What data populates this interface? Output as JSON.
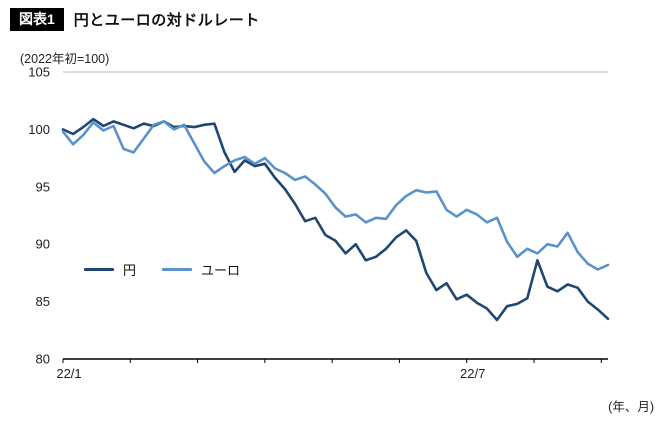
{
  "header": {
    "badge": "図表1",
    "title": "円とユーロの対ドルレート"
  },
  "chart_data": {
    "type": "line",
    "title": "円とユーロの対ドルレート",
    "subtitle": "(2022年初=100)",
    "x_unit_label": "(年、月)",
    "x_axis_note": "months since 2022/1",
    "xlim": [
      0,
      8.1
    ],
    "ylim": [
      80,
      105
    ],
    "yticks": [
      80,
      85,
      90,
      95,
      100,
      105
    ],
    "xticks": [
      {
        "pos": 0,
        "label": "22/1"
      },
      {
        "pos": 6,
        "label": "22/7"
      }
    ],
    "minor_xticks": [
      0,
      1,
      2,
      3,
      4,
      5,
      6,
      7,
      8
    ],
    "grid": false,
    "legend_position": "inside-left",
    "axis_color": "#000000",
    "topline_color": "#bbbbbb",
    "x": [
      0,
      0.15,
      0.3,
      0.45,
      0.6,
      0.75,
      0.9,
      1.05,
      1.2,
      1.35,
      1.5,
      1.65,
      1.8,
      1.95,
      2.1,
      2.25,
      2.4,
      2.55,
      2.7,
      2.85,
      3.0,
      3.15,
      3.3,
      3.45,
      3.6,
      3.75,
      3.9,
      4.05,
      4.2,
      4.35,
      4.5,
      4.65,
      4.8,
      4.95,
      5.1,
      5.25,
      5.4,
      5.55,
      5.7,
      5.85,
      6.0,
      6.15,
      6.3,
      6.45,
      6.6,
      6.75,
      6.9,
      7.05,
      7.2,
      7.35,
      7.5,
      7.65,
      7.8,
      7.95,
      8.1
    ],
    "series": [
      {
        "name": "円",
        "color": "#1e4872",
        "values": [
          100.0,
          99.6,
          100.2,
          100.9,
          100.3,
          100.7,
          100.4,
          100.1,
          100.5,
          100.3,
          100.7,
          100.2,
          100.3,
          100.2,
          100.4,
          100.5,
          98.0,
          96.3,
          97.3,
          96.8,
          97.0,
          95.8,
          94.8,
          93.5,
          92.0,
          92.3,
          90.8,
          90.3,
          89.2,
          90.0,
          88.6,
          88.9,
          89.6,
          90.6,
          91.2,
          90.3,
          87.5,
          86.0,
          86.6,
          85.2,
          85.6,
          84.9,
          84.4,
          83.4,
          84.6,
          84.8,
          85.3,
          88.6,
          86.3,
          85.9,
          86.5,
          86.2,
          85.0,
          84.3,
          83.5
        ]
      },
      {
        "name": "ユーロ",
        "color": "#5b92cc",
        "values": [
          99.8,
          98.7,
          99.5,
          100.6,
          99.9,
          100.3,
          98.3,
          98.0,
          99.2,
          100.4,
          100.7,
          100.0,
          100.4,
          98.8,
          97.2,
          96.2,
          96.8,
          97.3,
          97.6,
          97.0,
          97.5,
          96.6,
          96.2,
          95.6,
          95.9,
          95.2,
          94.4,
          93.2,
          92.4,
          92.6,
          91.9,
          92.3,
          92.2,
          93.4,
          94.2,
          94.7,
          94.5,
          94.6,
          93.0,
          92.4,
          93.0,
          92.6,
          91.9,
          92.3,
          90.2,
          88.9,
          89.6,
          89.2,
          90.0,
          89.8,
          91.0,
          89.3,
          88.3,
          87.8,
          88.2
        ]
      }
    ]
  }
}
